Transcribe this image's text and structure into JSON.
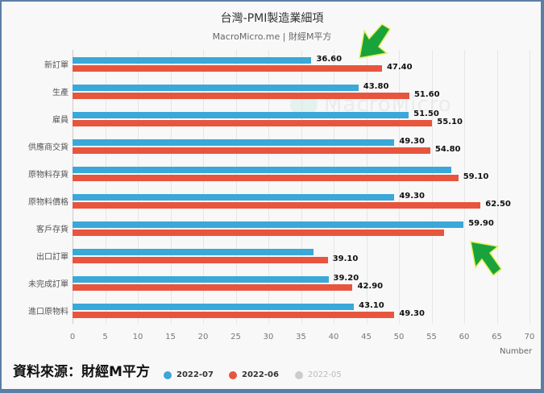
{
  "chart_data": {
    "type": "bar",
    "orientation": "horizontal",
    "title": "台灣-PMI製造業細項",
    "subtitle": "MacroMicro.me | 財經M平方",
    "categories": [
      "新訂單",
      "生產",
      "雇員",
      "供應商交貨",
      "原物料存貨",
      "原物料價格",
      "客戶存貨",
      "出口訂單",
      "未完成訂單",
      "進口原物料"
    ],
    "series": [
      {
        "name": "2022-07",
        "color": "#3aa8d8",
        "values": [
          36.6,
          43.8,
          51.5,
          49.3,
          58.0,
          49.3,
          59.9,
          36.9,
          39.2,
          43.1
        ],
        "labels": [
          "36.60",
          "43.80",
          "51.50",
          "49.30",
          null,
          "49.30",
          "59.90",
          null,
          "39.20",
          "43.10"
        ]
      },
      {
        "name": "2022-06",
        "color": "#e8553e",
        "values": [
          47.4,
          51.6,
          55.1,
          54.8,
          59.1,
          62.5,
          56.9,
          39.1,
          42.9,
          49.3
        ],
        "labels": [
          "47.40",
          "51.60",
          "55.10",
          "54.80",
          "59.10",
          "62.50",
          null,
          "39.10",
          "42.90",
          "49.30"
        ]
      },
      {
        "name": "2022-05",
        "color": "#cccccc",
        "hidden": true,
        "values": []
      }
    ],
    "estimated_values": [
      {
        "series": "2022-07",
        "category": "原物料存貨",
        "value": 58.0,
        "note": "no data label shown; estimated from bar length"
      },
      {
        "series": "2022-07",
        "category": "出口訂單",
        "value": 36.9,
        "note": "no data label shown; estimated from bar length"
      },
      {
        "series": "2022-06",
        "category": "客戶存貨",
        "value": 56.9,
        "note": "no data label shown; estimated from bar length"
      }
    ],
    "xlabel": "Number",
    "ylabel": "",
    "xlim": [
      0,
      70
    ],
    "xticks": [
      "0",
      "5",
      "10",
      "15",
      "20",
      "25",
      "30",
      "35",
      "40",
      "45",
      "50",
      "55",
      "60",
      "65",
      "70"
    ],
    "grid": true,
    "legend_position": "bottom"
  },
  "header": {
    "title": "台灣-PMI製造業細項",
    "subtitle": "MacroMicro.me | 財經M平方"
  },
  "watermark": "MacroMicro",
  "axis": {
    "unit": "Number"
  },
  "footer": {
    "source": "資料來源：財經M平方"
  },
  "legend": [
    {
      "label": "2022-07",
      "color": "#3aa8d8",
      "active": true
    },
    {
      "label": "2022-06",
      "color": "#e8553e",
      "active": true
    },
    {
      "label": "2022-05",
      "color": "#cccccc",
      "active": false
    }
  ],
  "annotations": [
    {
      "type": "arrow",
      "color": "#1aa33c",
      "direction": "down-left",
      "target": "新訂單 2022-06"
    },
    {
      "type": "arrow",
      "color": "#1aa33c",
      "direction": "up-left",
      "target": "客戶存貨 2022-07"
    }
  ]
}
